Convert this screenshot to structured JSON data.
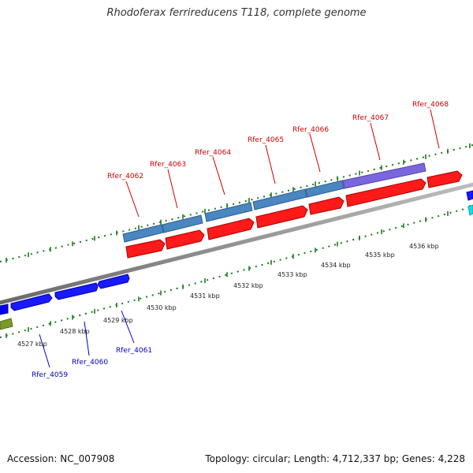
{
  "title": "Rhodoferax ferrireducens T118, complete genome",
  "footer": {
    "accession": "Accession: NC_007908",
    "stats": "Topology: circular; Length: 4,712,337 bp; Genes: 4,228"
  },
  "colors": {
    "forward_label": "#cc0000",
    "reverse_label": "#0000cc",
    "tick": "#1a7a1a",
    "backbone": "#888888",
    "cds_forward": "#ff0000",
    "cds_reverse": "#0000ee",
    "gene_blue": "#4a86c0",
    "gene_violet": "#7a66dd",
    "olive": "#7a9a2a",
    "cyan": "#00e5ee"
  },
  "scale_labels": [
    "4527 kbp",
    "4528 kbp",
    "4529 kbp",
    "4530 kbp",
    "4531 kbp",
    "4532 kbp",
    "4533 kbp",
    "4534 kbp",
    "4535 kbp",
    "4536 kbp"
  ],
  "forward_genes": [
    "Rfer_4062",
    "Rfer_4063",
    "Rfer_4064",
    "Rfer_4065",
    "Rfer_4066",
    "Rfer_4067",
    "Rfer_4068"
  ],
  "reverse_genes": [
    "Rfer_4059",
    "Rfer_4060",
    "Rfer_4061"
  ]
}
